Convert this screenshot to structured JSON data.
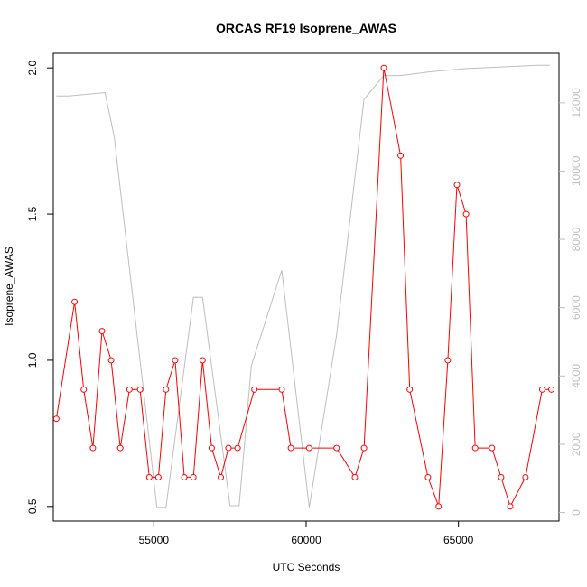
{
  "chart_data": {
    "type": "line",
    "title": "ORCAS RF19 Isoprene_AWAS",
    "xlabel": "UTC Seconds",
    "ylabel": "Isoprene_AWAS",
    "y2label": "",
    "xlim": [
      51700,
      68300
    ],
    "ylim": [
      0.45,
      2.05
    ],
    "y2lim": [
      -250,
      13450
    ],
    "x_ticks": [
      55000,
      60000,
      65000
    ],
    "y_ticks": [
      0.5,
      1.0,
      1.5,
      2.0
    ],
    "y_tick_labels": [
      "0.5",
      "1.0",
      "1.5",
      "2.0"
    ],
    "y2_ticks": [
      0,
      2000,
      4000,
      6000,
      8000,
      10000,
      12000
    ],
    "grid": false,
    "colors": {
      "primary": "#ff0000",
      "secondary": "#bebebe"
    },
    "series": [
      {
        "axis": "left",
        "style": "line+open-circle",
        "x": [
          51800,
          52400,
          52700,
          53000,
          53300,
          53600,
          53900,
          54200,
          54550,
          54850,
          55150,
          55400,
          55700,
          56000,
          56300,
          56600,
          56900,
          57200,
          57450,
          57750,
          58300,
          59200,
          59500,
          60100,
          61000,
          61600,
          61900,
          62550,
          63100,
          63400,
          64000,
          64350,
          64650,
          64950,
          65250,
          65550,
          66100,
          66400,
          66700,
          67200,
          67750,
          68050
        ],
        "y": [
          0.8,
          1.2,
          0.9,
          0.7,
          1.1,
          1.0,
          0.7,
          0.9,
          0.9,
          0.6,
          0.6,
          0.9,
          1.0,
          0.6,
          0.6,
          1.0,
          0.7,
          0.6,
          0.7,
          0.7,
          0.9,
          0.9,
          0.7,
          0.7,
          0.7,
          0.6,
          0.7,
          2.0,
          1.7,
          0.9,
          0.6,
          0.5,
          1.0,
          1.6,
          1.5,
          0.7,
          0.7,
          0.6,
          0.5,
          0.6,
          0.9,
          0.9
        ]
      },
      {
        "axis": "right",
        "style": "line",
        "x": [
          51800,
          52200,
          53400,
          53700,
          54800,
          55100,
          55400,
          56300,
          56600,
          57500,
          57800,
          58200,
          59200,
          60100,
          61000,
          61900,
          62550,
          63100,
          64000,
          65200,
          66400,
          67600,
          68000
        ],
        "y": [
          12200,
          12200,
          12300,
          11000,
          2500,
          150,
          150,
          6300,
          6300,
          200,
          200,
          4300,
          7100,
          150,
          5200,
          12100,
          12800,
          12800,
          12900,
          13000,
          13050,
          13100,
          13100
        ]
      }
    ]
  }
}
